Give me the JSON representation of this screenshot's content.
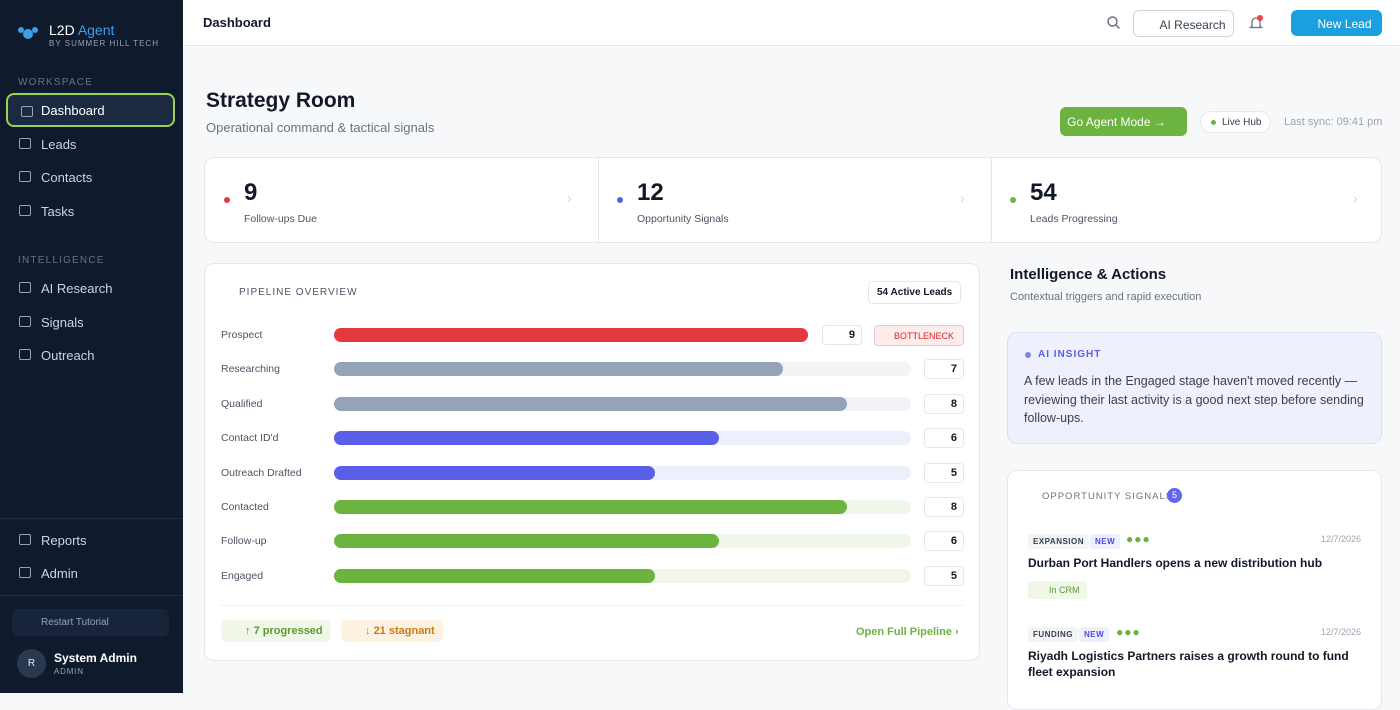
{
  "sidebar": {
    "brand": "L2D",
    "brand_accent": "Agent",
    "brand_sub": "BY SUMMER HILL TECH",
    "sections": [
      {
        "title": "WORKSPACE",
        "items": [
          "Dashboard",
          "Leads",
          "Contacts",
          "Tasks"
        ]
      },
      {
        "title": "INTELLIGENCE",
        "items": [
          "AI Research",
          "Signals",
          "Outreach"
        ]
      }
    ],
    "bottom_items": [
      "Reports",
      "Admin"
    ],
    "tutorial": "Restart Tutorial",
    "user": {
      "initial": "R",
      "name": "System Admin",
      "role": "ADMIN"
    }
  },
  "header": {
    "title": "Dashboard",
    "ai_research": "AI Research",
    "new_lead": "New Lead"
  },
  "page": {
    "title": "Strategy Room",
    "subtitle": "Operational command & tactical signals",
    "agent_mode": "Go Agent Mode",
    "live_hub": "Live Hub",
    "last_sync": "Last sync: 09:41 pm"
  },
  "stats": [
    {
      "value": 9,
      "label": "Follow-ups Due",
      "color": "#e5393f"
    },
    {
      "value": 12,
      "label": "Opportunity Signals",
      "color": "#5b5fe8"
    },
    {
      "value": 54,
      "label": "Leads Progressing",
      "color": "#6cb33f"
    }
  ],
  "pipeline": {
    "title": "PIPELINE OVERVIEW",
    "active": "54 Active Leads",
    "stages": [
      {
        "name": "Prospect",
        "value": 9,
        "color": "#e5393f",
        "track": "#fdecec",
        "badge": "BOTTLENECK"
      },
      {
        "name": "Researching",
        "value": 7,
        "color": "#94a3b8",
        "track": "#f1f3f6"
      },
      {
        "name": "Qualified",
        "value": 8,
        "color": "#94a3b8",
        "track": "#f1f3f6"
      },
      {
        "name": "Contact ID'd",
        "value": 6,
        "color": "#5b5fe8",
        "track": "#eeeffd"
      },
      {
        "name": "Outreach Drafted",
        "value": 5,
        "color": "#5b5fe8",
        "track": "#eeeffd"
      },
      {
        "name": "Contacted",
        "value": 8,
        "color": "#6cb33f",
        "track": "#f0f7ea"
      },
      {
        "name": "Follow-up",
        "value": 6,
        "color": "#6cb33f",
        "track": "#f0f7ea"
      },
      {
        "name": "Engaged",
        "value": 5,
        "color": "#6cb33f",
        "track": "#f0f7ea"
      }
    ],
    "progressed": "7 progressed",
    "stagnant": "21 stagnant",
    "open": "Open Full Pipeline"
  },
  "intelligence": {
    "title": "Intelligence & Actions",
    "subtitle": "Contextual triggers and rapid execution",
    "insight_label": "AI INSIGHT",
    "insight": "A few leads in the Engaged stage haven't moved recently — reviewing their last activity is a good next step before sending follow-ups."
  },
  "signals": {
    "title": "OPPORTUNITY SIGNALS",
    "count": "5",
    "items": [
      {
        "tag": "EXPANSION",
        "flag": "NEW",
        "date": "12/7/2026",
        "title": "Durban Port Handlers opens a new distribution hub",
        "status": "In CRM"
      },
      {
        "tag": "FUNDING",
        "flag": "NEW",
        "date": "12/7/2026",
        "title": "Riyadh Logistics Partners raises a growth round to fund fleet expansion"
      }
    ]
  }
}
